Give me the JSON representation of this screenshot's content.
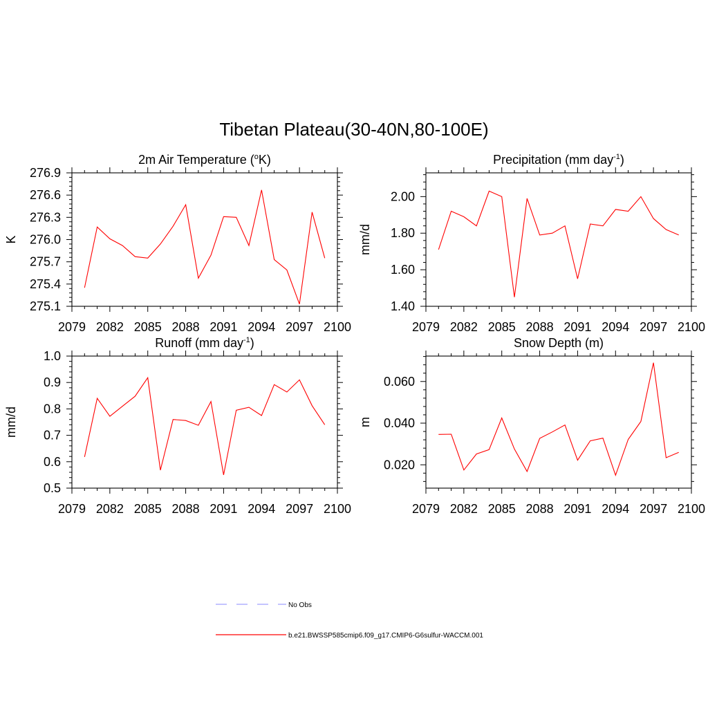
{
  "title": "Tibetan Plateau(30-40N,80-100E)",
  "colors": {
    "model_line": "#ff0000",
    "obs_line": "#a0a0ff",
    "axis": "#000000"
  },
  "chart_data": [
    {
      "type": "line",
      "title_parts": [
        "2m Air Temperature (",
        "o",
        "K)"
      ],
      "ylabel": "K",
      "xlim": [
        2079,
        2100
      ],
      "xticks": [
        2079,
        2082,
        2085,
        2088,
        2091,
        2094,
        2097,
        2100
      ],
      "ylim": [
        275.1,
        276.9
      ],
      "yticks": [
        "275.1",
        "275.4",
        "275.7",
        "276.0",
        "276.3",
        "276.6",
        "276.9"
      ],
      "x": [
        2080,
        2081,
        2082,
        2083,
        2084,
        2085,
        2086,
        2087,
        2088,
        2089,
        2090,
        2091,
        2092,
        2093,
        2094,
        2095,
        2096,
        2097,
        2098,
        2099
      ],
      "values": [
        275.35,
        276.17,
        276.01,
        275.92,
        275.77,
        275.75,
        275.94,
        276.18,
        276.47,
        275.48,
        275.79,
        276.31,
        276.3,
        275.92,
        276.67,
        275.73,
        275.59,
        275.13,
        276.37,
        275.75
      ]
    },
    {
      "type": "line",
      "title_parts": [
        "Precipitation (mm day",
        "-1",
        ")"
      ],
      "ylabel": "mm/d",
      "xlim": [
        2079,
        2100
      ],
      "xticks": [
        2079,
        2082,
        2085,
        2088,
        2091,
        2094,
        2097,
        2100
      ],
      "ylim": [
        1.4,
        2.13
      ],
      "yticks": [
        "1.40",
        "1.60",
        "1.80",
        "2.00"
      ],
      "x": [
        2080,
        2081,
        2082,
        2083,
        2084,
        2085,
        2086,
        2087,
        2088,
        2089,
        2090,
        2091,
        2092,
        2093,
        2094,
        2095,
        2096,
        2097,
        2098,
        2099
      ],
      "values": [
        1.71,
        1.92,
        1.89,
        1.84,
        2.03,
        2.0,
        1.45,
        1.99,
        1.79,
        1.8,
        1.84,
        1.55,
        1.85,
        1.84,
        1.93,
        1.92,
        2.0,
        1.88,
        1.82,
        1.79
      ]
    },
    {
      "type": "line",
      "title_parts": [
        "Runoff (mm day",
        "-1",
        ")"
      ],
      "ylabel": "mm/d",
      "xlim": [
        2079,
        2100
      ],
      "xticks": [
        2079,
        2082,
        2085,
        2088,
        2091,
        2094,
        2097,
        2100
      ],
      "ylim": [
        0.5,
        1.0
      ],
      "yticks": [
        "0.5",
        "0.6",
        "0.7",
        "0.8",
        "0.9",
        "1.0"
      ],
      "x": [
        2080,
        2081,
        2082,
        2083,
        2084,
        2085,
        2086,
        2087,
        2088,
        2089,
        2090,
        2091,
        2092,
        2093,
        2094,
        2095,
        2096,
        2097,
        2098,
        2099
      ],
      "values": [
        0.618,
        0.84,
        0.772,
        0.81,
        0.848,
        0.918,
        0.568,
        0.76,
        0.756,
        0.738,
        0.828,
        0.55,
        0.795,
        0.806,
        0.775,
        0.892,
        0.864,
        0.91,
        0.812,
        0.74
      ]
    },
    {
      "type": "line",
      "title_parts": [
        "Snow Depth (m)"
      ],
      "ylabel": "m",
      "xlim": [
        2079,
        2100
      ],
      "xticks": [
        2079,
        2082,
        2085,
        2088,
        2091,
        2094,
        2097,
        2100
      ],
      "ylim": [
        0.0088,
        0.0722
      ],
      "yticks": [
        "0.020",
        "0.040",
        "0.060"
      ],
      "x": [
        2080,
        2081,
        2082,
        2083,
        2084,
        2085,
        2086,
        2087,
        2088,
        2089,
        2090,
        2091,
        2092,
        2093,
        2094,
        2095,
        2096,
        2097,
        2098,
        2099
      ],
      "values": [
        0.0346,
        0.0347,
        0.0175,
        0.0252,
        0.0273,
        0.0425,
        0.0276,
        0.0168,
        0.0327,
        0.0358,
        0.0391,
        0.0222,
        0.0315,
        0.0328,
        0.015,
        0.0322,
        0.0408,
        0.069,
        0.0234,
        0.026
      ]
    }
  ],
  "legend": [
    {
      "label": "No Obs",
      "style": "dashed",
      "color": "#a0a0ff"
    },
    {
      "label": "b.e21.BWSSP585cmip6.f09_g17.CMIP6-G6sulfur-WACCM.001",
      "style": "solid",
      "color": "#ff0000"
    }
  ]
}
